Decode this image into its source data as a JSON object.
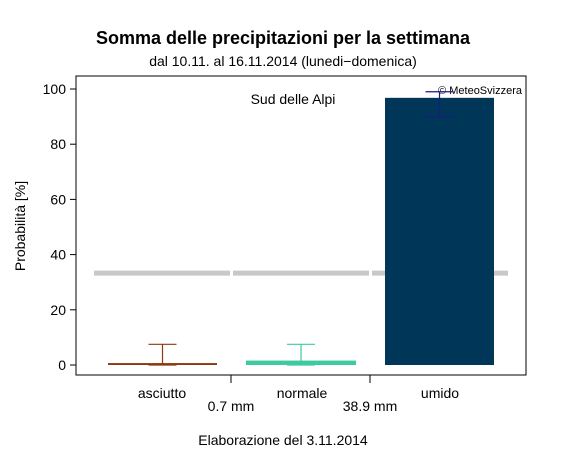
{
  "title": "Somma delle precipitazioni per la settimana",
  "subtitle": "dal 10.11. al 16.11.2014 (lunedi−domenica)",
  "footer": "Elaborazione del 3.11.2014",
  "copyright": "© MeteoSvizzera",
  "colors": {
    "asciutto": "#8b3a0f",
    "normale": "#3ec9a0",
    "umido": "#003658",
    "climatology_line": "#c8c8c8",
    "umido_error_bar": "#1a1a80"
  },
  "chart_data": {
    "type": "bar",
    "region_label": "Sud delle Alpi",
    "ylabel": "Probabilità [%]",
    "ylim": [
      0,
      100
    ],
    "yticks": [
      0,
      20,
      40,
      60,
      80,
      100
    ],
    "categories": [
      "asciutto",
      "normale",
      "umido"
    ],
    "values": [
      0.7,
      1.6,
      96.8
    ],
    "error_low": [
      0,
      0,
      90
    ],
    "error_high": [
      7.5,
      7.5,
      99
    ],
    "climatology": [
      33.3,
      33.3,
      33.3
    ],
    "thresholds": [
      "0.7 mm",
      "38.9 mm"
    ],
    "grid": false
  }
}
